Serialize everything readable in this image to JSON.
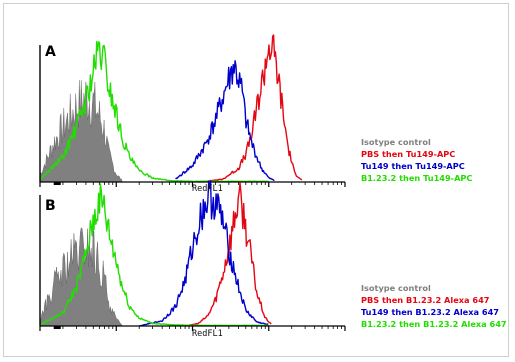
{
  "chart_data": [
    {
      "panel": "A",
      "type": "line",
      "xlabel": "RedFL1",
      "series": [
        {
          "name": "Isotype control",
          "color": "#808080",
          "fill": true,
          "x": [
            1,
            1.5,
            2,
            3,
            4,
            5,
            6,
            7,
            8,
            10,
            12
          ],
          "y": [
            5,
            28,
            40,
            55,
            62,
            58,
            48,
            38,
            20,
            6,
            1
          ]
        },
        {
          "name": "PBS then Tu149-APC",
          "color": "#e30613",
          "fill": false,
          "x": [
            120,
            250,
            400,
            500,
            600,
            700,
            800,
            900,
            1000,
            1150,
            1300,
            1500,
            1800,
            2200,
            2800
          ],
          "y": [
            0,
            2,
            10,
            20,
            35,
            55,
            70,
            85,
            100,
            95,
            80,
            55,
            25,
            6,
            1
          ]
        },
        {
          "name": "Tu149 then Tu149-APC",
          "color": "#0000cc",
          "fill": false,
          "x": [
            60,
            100,
            150,
            200,
            250,
            300,
            350,
            400,
            450,
            500,
            600,
            700,
            800,
            1000,
            1200
          ],
          "y": [
            2,
            12,
            28,
            45,
            62,
            75,
            85,
            75,
            65,
            45,
            28,
            18,
            10,
            3,
            1
          ]
        },
        {
          "name": "B1.23.2 then Tu149-APC",
          "color": "#22dd00",
          "fill": false,
          "x": [
            1,
            2,
            3,
            4,
            5,
            6,
            7,
            8,
            10,
            12,
            15,
            20,
            30,
            50,
            100,
            1000
          ],
          "y": [
            2,
            18,
            40,
            60,
            80,
            97,
            88,
            70,
            50,
            32,
            18,
            8,
            3,
            1,
            0.5,
            0.5
          ]
        }
      ]
    },
    {
      "panel": "B",
      "type": "line",
      "xlabel": "RedFL1",
      "series": [
        {
          "name": "Isotype control",
          "color": "#808080",
          "fill": true,
          "x": [
            1,
            1.5,
            2,
            3,
            4,
            5,
            6,
            7,
            8,
            10,
            12
          ],
          "y": [
            5,
            30,
            42,
            55,
            60,
            57,
            45,
            35,
            18,
            5,
            1
          ]
        },
        {
          "name": "PBS then B1.23.2 Alexa 647",
          "color": "#e30613",
          "fill": false,
          "x": [
            80,
            120,
            160,
            200,
            250,
            300,
            350,
            400,
            450,
            500,
            600,
            700,
            900,
            1100
          ],
          "y": [
            0,
            2,
            8,
            20,
            40,
            60,
            80,
            98,
            90,
            75,
            50,
            25,
            6,
            1
          ]
        },
        {
          "name": "Tu149 then B1.23.2 Alexa 647",
          "color": "#0000cc",
          "fill": false,
          "x": [
            20,
            40,
            60,
            80,
            100,
            130,
            160,
            200,
            250,
            300,
            400,
            500,
            700,
            1000
          ],
          "y": [
            0,
            4,
            15,
            35,
            60,
            85,
            98,
            95,
            80,
            58,
            30,
            12,
            3,
            1
          ]
        },
        {
          "name": "B1.23.2 then B1.23.2 Alexa 647",
          "color": "#22dd00",
          "fill": false,
          "x": [
            1,
            2,
            3,
            4,
            5,
            6,
            7,
            8,
            10,
            12,
            15,
            20,
            30,
            50,
            100,
            1000
          ],
          "y": [
            1,
            10,
            30,
            55,
            80,
            97,
            90,
            72,
            50,
            30,
            15,
            6,
            2,
            1,
            0.5,
            0.5
          ]
        }
      ]
    }
  ]
}
